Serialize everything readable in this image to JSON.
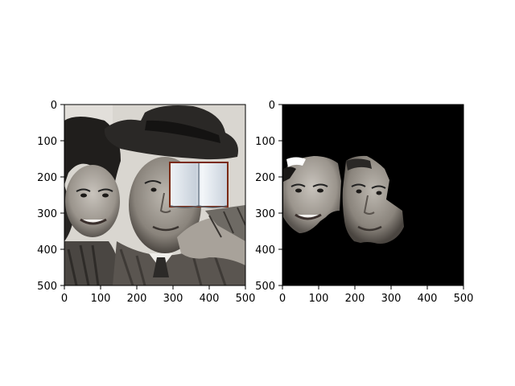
{
  "figure": {
    "panels": [
      {
        "name": "original-photo-panel",
        "image": "vintage black-and-white photo of a man in a fedora hat and a smiling dark-haired woman, with an open book icon pasted over the upper right",
        "xticks": [
          "0",
          "100",
          "200",
          "300",
          "400",
          "500"
        ],
        "yticks": [
          "0",
          "100",
          "200",
          "300",
          "400",
          "500"
        ]
      },
      {
        "name": "face-mask-panel",
        "image": "black background with only the two face regions of the photo visible",
        "xticks": [
          "0",
          "100",
          "200",
          "300",
          "400",
          "500"
        ],
        "yticks": [
          "0",
          "100",
          "200",
          "300",
          "400",
          "500"
        ]
      }
    ],
    "colors": {
      "photo_light": "#d9d6d0",
      "photo_dark": "#2a2826",
      "mask_bg": "#000000",
      "book_border": "#7a2a14"
    }
  }
}
